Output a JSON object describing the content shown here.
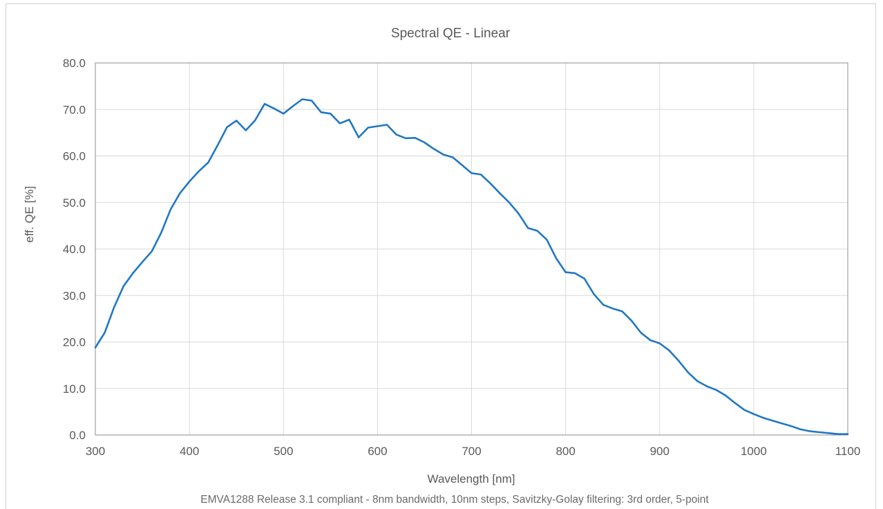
{
  "chart_data": {
    "type": "line",
    "title": "Spectral QE - Linear",
    "xlabel": "Wavelength  [nm]",
    "ylabel": "eff. QE [%]",
    "footnote": "EMVA1288 Release 3.1 compliant - 8nm bandwidth, 10nm steps, Savitzky-Golay filtering: 3rd order, 5-point",
    "xlim": [
      300,
      1100
    ],
    "ylim": [
      0,
      80
    ],
    "xticks": [
      300,
      400,
      500,
      600,
      700,
      800,
      900,
      1000,
      1100
    ],
    "yticks": [
      0,
      10,
      20,
      30,
      40,
      50,
      60,
      70,
      80
    ],
    "ytick_labels": [
      "0.0",
      "10.0",
      "20.0",
      "30.0",
      "40.0",
      "50.0",
      "60.0",
      "70.0",
      "80.0"
    ],
    "grid": true,
    "line_color": "#1f77c4",
    "series": [
      {
        "x": [
          300,
          310,
          320,
          330,
          340,
          350,
          360,
          370,
          380,
          390,
          400,
          410,
          420,
          430,
          440,
          450,
          460,
          470,
          480,
          490,
          500,
          510,
          520,
          530,
          540,
          550,
          560,
          570,
          580,
          590,
          600,
          610,
          620,
          630,
          640,
          650,
          660,
          670,
          680,
          690,
          700,
          710,
          720,
          730,
          740,
          750,
          760,
          770,
          780,
          790,
          800,
          810,
          820,
          830,
          840,
          850,
          860,
          870,
          880,
          890,
          900,
          910,
          920,
          930,
          940,
          950,
          960,
          970,
          980,
          990,
          1000,
          1010,
          1020,
          1030,
          1040,
          1050,
          1060,
          1070,
          1080,
          1090,
          1100
        ],
        "y": [
          18.8,
          22.0,
          27.5,
          32.0,
          34.8,
          37.2,
          39.5,
          43.5,
          48.5,
          52.0,
          54.5,
          56.7,
          58.6,
          62.3,
          66.2,
          67.6,
          65.5,
          67.7,
          71.2,
          70.2,
          69.1,
          70.7,
          72.2,
          71.9,
          69.4,
          69.1,
          67.0,
          67.8,
          64.0,
          66.1,
          66.4,
          66.7,
          64.6,
          63.8,
          63.9,
          62.9,
          61.5,
          60.3,
          59.7,
          58.0,
          56.3,
          56.0,
          54.1,
          52.0,
          50.0,
          47.6,
          44.5,
          43.9,
          42.0,
          38.0,
          35.0,
          34.8,
          33.6,
          30.3,
          28.0,
          27.2,
          26.6,
          24.6,
          22.0,
          20.4,
          19.7,
          18.2,
          16.0,
          13.5,
          11.6,
          10.5,
          9.7,
          8.5,
          6.9,
          5.4,
          4.5,
          3.7,
          3.1,
          2.5,
          1.9,
          1.2,
          0.8,
          0.6,
          0.4,
          0.2,
          0.2
        ]
      }
    ]
  }
}
